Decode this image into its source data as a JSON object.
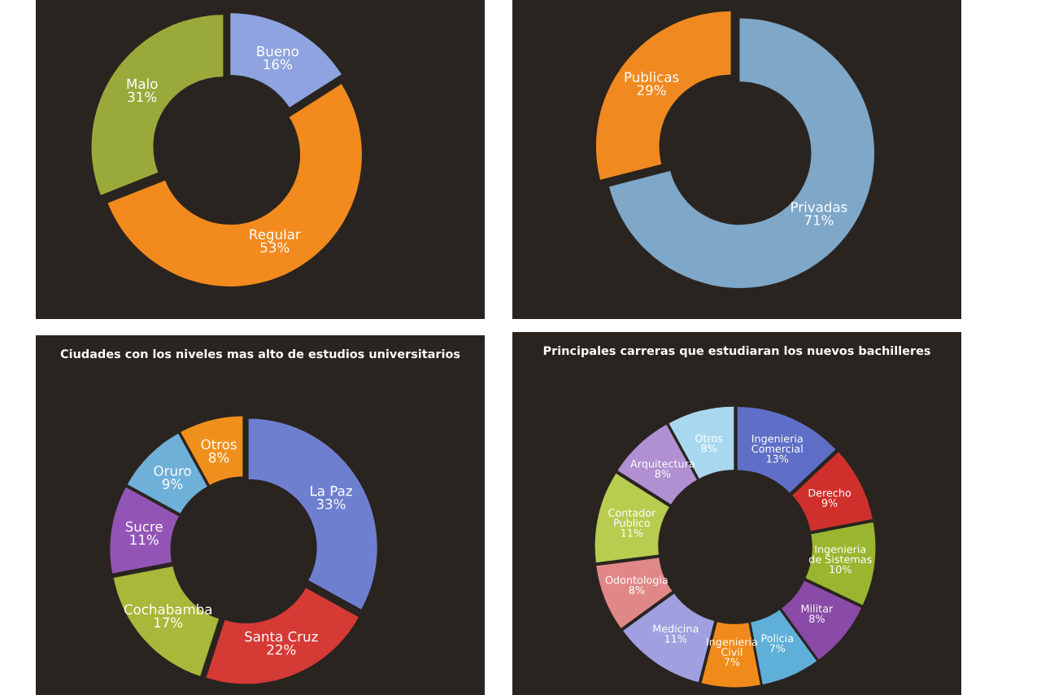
{
  "chart_data": [
    {
      "type": "donut",
      "categories": [
        "Bueno",
        "Regular",
        "Malo"
      ],
      "values": [
        16,
        53,
        31
      ],
      "value_labels": [
        "16%",
        "53%",
        "31%"
      ],
      "colors": [
        "#8fa3e0",
        "#f28a1e",
        "#9aaa3a"
      ]
    },
    {
      "type": "donut",
      "categories": [
        "Privadas",
        "Publicas"
      ],
      "values": [
        71,
        29
      ],
      "value_labels": [
        "71%",
        "29%"
      ],
      "colors": [
        "#7ea7c8",
        "#f08a20"
      ]
    },
    {
      "type": "donut",
      "title": "Ciudades con los niveles mas alto de estudios universitarios",
      "categories": [
        "La Paz",
        "Santa Cruz",
        "Cochabamba",
        "Sucre",
        "Oruro",
        "Otros"
      ],
      "values": [
        33,
        22,
        17,
        11,
        9,
        8
      ],
      "value_labels": [
        "33%",
        "22%",
        "17%",
        "11%",
        "9%",
        "8%"
      ],
      "colors": [
        "#6f7fd0",
        "#d63a35",
        "#a8b83a",
        "#9355b5",
        "#6fb0d8",
        "#f0901c"
      ]
    },
    {
      "type": "donut",
      "title": "Principales carreras que estudiaran los nuevos bachilleres",
      "categories": [
        "Ingenieria Comercial",
        "Derecho",
        "Ingenieria de Sistemas",
        "Militar",
        "Policia",
        "Ingenieria Civil",
        "Medicina",
        "Odontologia",
        "Contador Publico",
        "Arquitectura",
        "Otros"
      ],
      "values": [
        13,
        9,
        10,
        8,
        7,
        7,
        11,
        8,
        11,
        8,
        8
      ],
      "value_labels": [
        "13%",
        "9%",
        "10%",
        "8%",
        "7%",
        "7%",
        "11%",
        "8%",
        "11%",
        "8%",
        "8%"
      ],
      "colors": [
        "#5f6fc8",
        "#d0302c",
        "#9ab530",
        "#8a4aa8",
        "#5fb0d8",
        "#f08a1a",
        "#a0a0e0",
        "#e08888",
        "#b8cc50",
        "#b090d0",
        "#a8d8f0"
      ]
    }
  ]
}
